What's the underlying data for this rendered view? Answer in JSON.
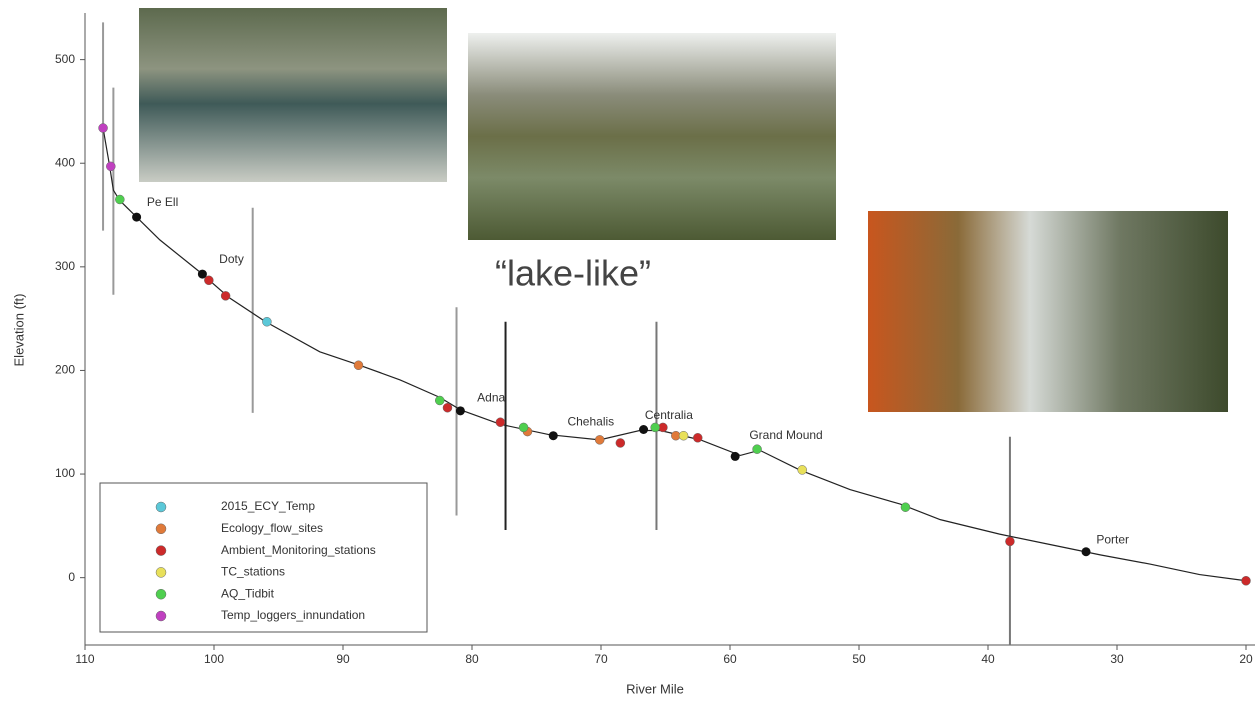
{
  "chart_data": {
    "type": "profile",
    "y_label": "Elevation (ft)",
    "x_label": "River Mile",
    "annotation_main": "“lake-like”",
    "xlim": [
      110,
      20
    ],
    "ylim": [
      -65,
      545
    ],
    "xticks": [
      110,
      100,
      90,
      80,
      70,
      60,
      50,
      40,
      30,
      20
    ],
    "yticks": [
      0,
      100,
      200,
      300,
      400,
      500
    ],
    "profile": {
      "color": "#222222",
      "x": [
        108.6,
        108.1,
        107.8,
        107.3,
        106.0,
        104.2,
        101.1,
        98.8,
        96.0,
        91.8,
        88.7,
        85.6,
        82.5,
        80.9,
        77.8,
        74.0,
        70.1,
        67.0,
        65.4,
        62.3,
        59.2,
        57.7,
        54.6,
        50.7,
        46.8,
        43.7,
        39.1,
        35.2,
        31.3,
        27.4,
        23.6,
        20
      ],
      "values": [
        434,
        398,
        374,
        364,
        348,
        326,
        295,
        270,
        247,
        218,
        205,
        191,
        174,
        162,
        148,
        138,
        133,
        142,
        142,
        133,
        118,
        123,
        104,
        85,
        71,
        56,
        42,
        32,
        22,
        13,
        3,
        -3
      ]
    },
    "series": [
      {
        "name": "2015_ECY_Temp",
        "color": "#5bc8d8",
        "x": [
          95.9
        ],
        "values": [
          247
        ]
      },
      {
        "name": "Ecology_flow_sites",
        "color": "#e07a3a",
        "x": [
          88.8,
          75.7,
          70.1,
          64.2
        ],
        "values": [
          205,
          141,
          133,
          137
        ]
      },
      {
        "name": "Ambient_Monitoring_stations",
        "color": "#cc2a2a",
        "x": [
          100.4,
          99.1,
          81.9,
          77.8,
          68.5,
          65.2,
          62.5,
          38.3,
          20
        ],
        "values": [
          287,
          272,
          164,
          150,
          130,
          145,
          135,
          35,
          -3
        ]
      },
      {
        "name": "TC_stations",
        "color": "#e8e05a",
        "x": [
          63.6,
          54.4
        ],
        "values": [
          137,
          104
        ]
      },
      {
        "name": "AQ_Tidbit",
        "color": "#4fcf4f",
        "x": [
          107.3,
          82.5,
          76.0,
          65.8,
          57.9,
          46.4
        ],
        "values": [
          365,
          171,
          145,
          145,
          124,
          68
        ]
      },
      {
        "name": "Temp_loggers_innundation",
        "color": "#c040c0",
        "x": [
          108.6,
          108.0
        ],
        "values": [
          434,
          397
        ]
      }
    ],
    "sites": {
      "color": "#111111",
      "x": [
        106.0,
        100.9,
        80.9,
        73.7,
        66.7,
        59.6,
        32.4
      ],
      "values": [
        348,
        293,
        161,
        137,
        143,
        117,
        25
      ]
    },
    "annotations": [
      {
        "text": "Pe Ell",
        "x": 105.2,
        "y": 362
      },
      {
        "text": "Doty",
        "x": 99.6,
        "y": 307
      },
      {
        "text": "Adna",
        "x": 79.6,
        "y": 173
      },
      {
        "text": "Chehalis",
        "x": 72.6,
        "y": 150
      },
      {
        "text": "Centralia",
        "x": 66.6,
        "y": 156
      },
      {
        "text": "Grand Mound",
        "x": 58.5,
        "y": 137
      },
      {
        "text": "Porter",
        "x": 31.6,
        "y": 36
      }
    ],
    "vertical_lines": [
      {
        "x": 108.6,
        "y": [
          536,
          335
        ],
        "color": "#999999"
      },
      {
        "x": 107.8,
        "y": [
          473,
          273
        ],
        "color": "#999999"
      },
      {
        "x": 97.0,
        "y": [
          357,
          159
        ],
        "color": "#999999"
      },
      {
        "x": 81.2,
        "y": [
          261,
          60
        ],
        "color": "#999999"
      },
      {
        "x": 77.4,
        "y": [
          247,
          46
        ],
        "color": "#222222"
      },
      {
        "x": 65.7,
        "y": [
          247,
          46
        ],
        "color": "#777777"
      },
      {
        "x": 38.3,
        "y": [
          136,
          -65
        ],
        "color": "#777777"
      }
    ]
  }
}
